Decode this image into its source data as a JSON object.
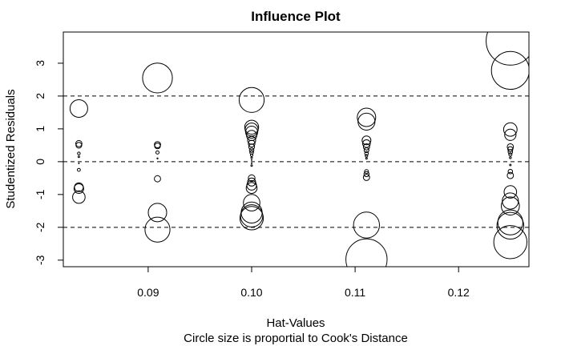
{
  "chart_data": {
    "type": "scatter",
    "title": "Influence Plot",
    "xlabel": "Hat-Values",
    "subtitle": "Circle size is proportial to Cook's Distance",
    "ylabel": "Studentized Residuals",
    "xlim": [
      0.0818,
      0.1268
    ],
    "ylim": [
      -3.2,
      3.95
    ],
    "xticks": [
      0.09,
      0.1,
      0.11,
      0.12
    ],
    "xtick_labels": [
      "0.09",
      "0.10",
      "0.11",
      "0.12"
    ],
    "yticks": [
      -3,
      -2,
      -1,
      0,
      1,
      2,
      3
    ],
    "ytick_labels": [
      "-3",
      "-2",
      "-1",
      "0",
      "1",
      "2",
      "3"
    ],
    "reference_lines_y": [
      -2,
      0,
      2
    ],
    "grid": false,
    "legend": "none",
    "point_color": "#000000",
    "points": [
      {
        "x": 0.0833,
        "y": 1.62,
        "cook": 0.24
      },
      {
        "x": 0.0833,
        "y": 0.55,
        "cook": 0.03
      },
      {
        "x": 0.0833,
        "y": 0.5,
        "cook": 0.025
      },
      {
        "x": 0.0833,
        "y": 0.25,
        "cook": 0.006
      },
      {
        "x": 0.0833,
        "y": 0.15,
        "cook": 0.002
      },
      {
        "x": 0.0833,
        "y": -0.05,
        "cook": 0.0005
      },
      {
        "x": 0.0833,
        "y": -0.25,
        "cook": 0.007
      },
      {
        "x": 0.0833,
        "y": -0.78,
        "cook": 0.06
      },
      {
        "x": 0.0833,
        "y": -0.82,
        "cook": 0.07
      },
      {
        "x": 0.0833,
        "y": -1.08,
        "cook": 0.12
      },
      {
        "x": 0.0909,
        "y": 2.55,
        "cook": 0.68
      },
      {
        "x": 0.0909,
        "y": 0.52,
        "cook": 0.03
      },
      {
        "x": 0.0909,
        "y": 0.48,
        "cook": 0.025
      },
      {
        "x": 0.0909,
        "y": 0.28,
        "cook": 0.008
      },
      {
        "x": 0.0909,
        "y": 0.1,
        "cook": 0.001
      },
      {
        "x": 0.0909,
        "y": -0.52,
        "cook": 0.03
      },
      {
        "x": 0.0909,
        "y": -1.55,
        "cook": 0.26
      },
      {
        "x": 0.0909,
        "y": -2.07,
        "cook": 0.48
      },
      {
        "x": 0.1,
        "y": 1.88,
        "cook": 0.48
      },
      {
        "x": 0.1,
        "y": 1.05,
        "cook": 0.15
      },
      {
        "x": 0.1,
        "y": 0.98,
        "cook": 0.13
      },
      {
        "x": 0.1,
        "y": 0.9,
        "cook": 0.11
      },
      {
        "x": 0.1,
        "y": 0.8,
        "cook": 0.08
      },
      {
        "x": 0.1,
        "y": 0.65,
        "cook": 0.05
      },
      {
        "x": 0.1,
        "y": 0.55,
        "cook": 0.035
      },
      {
        "x": 0.1,
        "y": 0.45,
        "cook": 0.025
      },
      {
        "x": 0.1,
        "y": 0.35,
        "cook": 0.015
      },
      {
        "x": 0.1,
        "y": 0.28,
        "cook": 0.01
      },
      {
        "x": 0.1,
        "y": 0.2,
        "cook": 0.005
      },
      {
        "x": 0.1,
        "y": 0.12,
        "cook": 0.002
      },
      {
        "x": 0.1,
        "y": 0.05,
        "cook": 0.0005
      },
      {
        "x": 0.1,
        "y": -0.05,
        "cook": 0.0005
      },
      {
        "x": 0.1,
        "y": -0.12,
        "cook": 0.002
      },
      {
        "x": 0.1,
        "y": -0.5,
        "cook": 0.035
      },
      {
        "x": 0.1,
        "y": -0.62,
        "cook": 0.05
      },
      {
        "x": 0.1,
        "y": -0.72,
        "cook": 0.07
      },
      {
        "x": 0.1,
        "y": -0.8,
        "cook": 0.09
      },
      {
        "x": 0.1,
        "y": -1.25,
        "cook": 0.21
      },
      {
        "x": 0.1,
        "y": -1.55,
        "cook": 0.34
      },
      {
        "x": 0.1,
        "y": -1.65,
        "cook": 0.38
      },
      {
        "x": 0.1,
        "y": -1.72,
        "cook": 0.42
      },
      {
        "x": 0.1111,
        "y": 1.35,
        "cook": 0.26
      },
      {
        "x": 0.1111,
        "y": 1.22,
        "cook": 0.22
      },
      {
        "x": 0.1111,
        "y": 0.65,
        "cook": 0.06
      },
      {
        "x": 0.1111,
        "y": 0.55,
        "cook": 0.045
      },
      {
        "x": 0.1111,
        "y": 0.45,
        "cook": 0.03
      },
      {
        "x": 0.1111,
        "y": 0.35,
        "cook": 0.018
      },
      {
        "x": 0.1111,
        "y": 0.25,
        "cook": 0.01
      },
      {
        "x": 0.1111,
        "y": 0.18,
        "cook": 0.005
      },
      {
        "x": 0.1111,
        "y": 0.1,
        "cook": 0.002
      },
      {
        "x": 0.1111,
        "y": -0.3,
        "cook": 0.012
      },
      {
        "x": 0.1111,
        "y": -0.38,
        "cook": 0.02
      },
      {
        "x": 0.1111,
        "y": -0.48,
        "cook": 0.03
      },
      {
        "x": 0.1111,
        "y": -1.93,
        "cook": 0.52
      },
      {
        "x": 0.1111,
        "y": -2.98,
        "cook": 1.3
      },
      {
        "x": 0.125,
        "y": 3.68,
        "cook": 1.8
      },
      {
        "x": 0.125,
        "y": 2.78,
        "cook": 1.1
      },
      {
        "x": 0.125,
        "y": 0.98,
        "cook": 0.14
      },
      {
        "x": 0.125,
        "y": 0.82,
        "cook": 0.1
      },
      {
        "x": 0.125,
        "y": 0.45,
        "cook": 0.03
      },
      {
        "x": 0.125,
        "y": 0.38,
        "cook": 0.02
      },
      {
        "x": 0.125,
        "y": 0.3,
        "cook": 0.015
      },
      {
        "x": 0.125,
        "y": 0.22,
        "cook": 0.008
      },
      {
        "x": 0.125,
        "y": 0.12,
        "cook": 0.003
      },
      {
        "x": 0.125,
        "y": -0.1,
        "cook": 0.002
      },
      {
        "x": 0.125,
        "y": -0.3,
        "cook": 0.015
      },
      {
        "x": 0.125,
        "y": -0.42,
        "cook": 0.03
      },
      {
        "x": 0.125,
        "y": -0.92,
        "cook": 0.12
      },
      {
        "x": 0.125,
        "y": -1.2,
        "cook": 0.2
      },
      {
        "x": 0.125,
        "y": -1.35,
        "cook": 0.25
      },
      {
        "x": 0.125,
        "y": -1.85,
        "cook": 0.48
      },
      {
        "x": 0.125,
        "y": -1.95,
        "cook": 0.55
      },
      {
        "x": 0.125,
        "y": -2.45,
        "cook": 0.85
      }
    ]
  }
}
